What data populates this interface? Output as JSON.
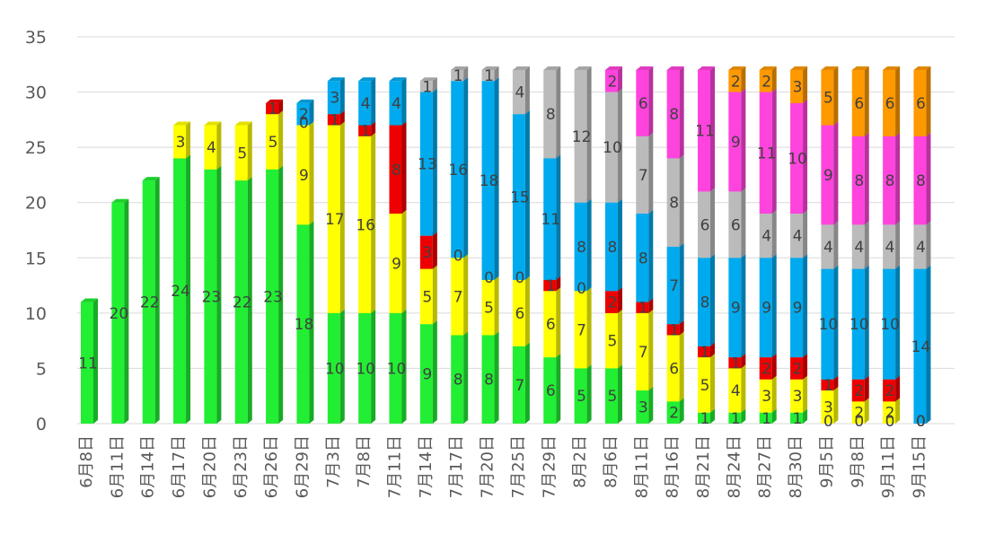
{
  "chart_data": {
    "type": "bar",
    "stacked": true,
    "three_d": true,
    "title": "",
    "xlabel": "",
    "ylabel": "",
    "ylim": [
      0,
      35
    ],
    "yticks": [
      0,
      5,
      10,
      15,
      20,
      25,
      30,
      35
    ],
    "grid": true,
    "legend": "none",
    "categories": [
      "6月8日",
      "6月11日",
      "6月14日",
      "6月17日",
      "6月20日",
      "6月23日",
      "6月26日",
      "6月29日",
      "7月3日",
      "7月8日",
      "7月11日",
      "7月14日",
      "7月17日",
      "7月20日",
      "7月25日",
      "7月29日",
      "8月2日",
      "8月6日",
      "8月11日",
      "8月16日",
      "8月21日",
      "8月24日",
      "8月27日",
      "8月30日",
      "9月5日",
      "9月8日",
      "9月11日",
      "9月15日"
    ],
    "series": [
      {
        "color": "#22ee33",
        "values": [
          11,
          20,
          22,
          24,
          23,
          22,
          23,
          18,
          10,
          10,
          10,
          9,
          8,
          8,
          7,
          6,
          5,
          5,
          3,
          2,
          1,
          1,
          1,
          1,
          0,
          0,
          0,
          0
        ]
      },
      {
        "color": "#ffff00",
        "values": [
          null,
          null,
          null,
          3,
          4,
          5,
          5,
          9,
          17,
          16,
          9,
          5,
          7,
          5,
          6,
          6,
          7,
          5,
          7,
          6,
          5,
          4,
          3,
          3,
          3,
          2,
          2,
          0
        ]
      },
      {
        "color": "#ee0000",
        "values": [
          null,
          null,
          null,
          null,
          null,
          null,
          1,
          0,
          1,
          1,
          8,
          3,
          0,
          0,
          0,
          1,
          0,
          2,
          1,
          1,
          1,
          1,
          2,
          2,
          1,
          2,
          2,
          0
        ]
      },
      {
        "color": "#00aaee",
        "values": [
          null,
          null,
          null,
          null,
          null,
          null,
          null,
          2,
          3,
          4,
          4,
          13,
          16,
          18,
          15,
          11,
          8,
          8,
          8,
          7,
          8,
          9,
          9,
          9,
          10,
          10,
          10,
          14
        ]
      },
      {
        "color": "#bbbbbb",
        "values": [
          null,
          null,
          null,
          null,
          null,
          null,
          null,
          null,
          null,
          null,
          null,
          1,
          1,
          1,
          4,
          8,
          12,
          10,
          7,
          8,
          6,
          6,
          4,
          4,
          4,
          4,
          4,
          4
        ]
      },
      {
        "color": "#ff44dd",
        "values": [
          null,
          null,
          null,
          null,
          null,
          null,
          null,
          null,
          null,
          null,
          null,
          null,
          null,
          null,
          null,
          null,
          null,
          2,
          6,
          8,
          11,
          9,
          11,
          10,
          9,
          8,
          8,
          8
        ]
      },
      {
        "color": "#ff9900",
        "values": [
          null,
          null,
          null,
          null,
          null,
          null,
          null,
          null,
          null,
          null,
          null,
          null,
          null,
          null,
          null,
          null,
          null,
          null,
          null,
          null,
          null,
          2,
          2,
          3,
          5,
          6,
          6,
          6
        ]
      }
    ]
  }
}
